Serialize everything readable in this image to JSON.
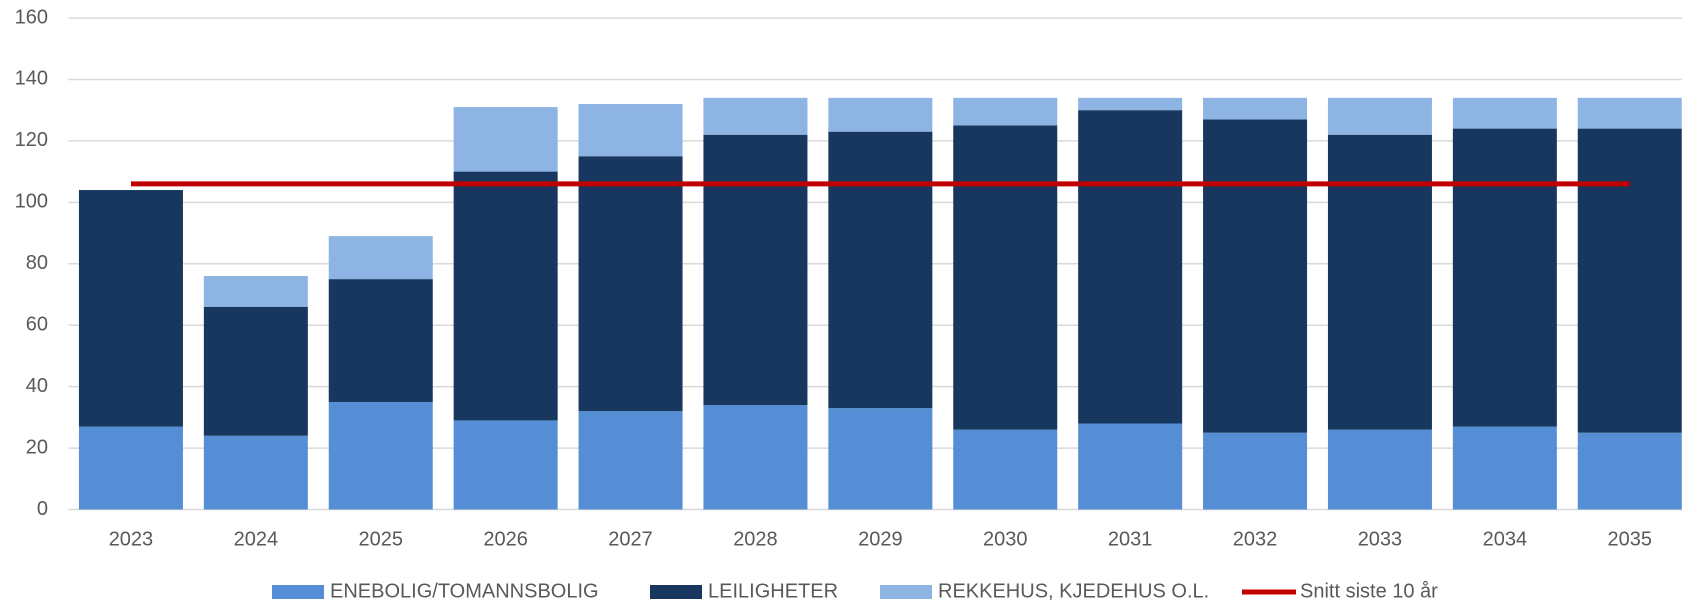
{
  "chart_data": {
    "type": "bar",
    "stacked": true,
    "categories": [
      "2023",
      "2024",
      "2025",
      "2026",
      "2027",
      "2028",
      "2029",
      "2030",
      "2031",
      "2032",
      "2033",
      "2034",
      "2035"
    ],
    "series": [
      {
        "name": "ENEBOLIG/TOMANNSBOLIG",
        "color": "#558ed5",
        "values": [
          27,
          24,
          35,
          29,
          32,
          34,
          33,
          26,
          28,
          25,
          26,
          27,
          25
        ]
      },
      {
        "name": "LEILIGHETER",
        "color": "#17375e",
        "values": [
          77,
          42,
          40,
          81,
          83,
          88,
          90,
          99,
          102,
          102,
          96,
          97,
          99
        ]
      },
      {
        "name": "REKKEHUS, KJEDEHUS O.L.",
        "color": "#8eb4e3",
        "values": [
          0,
          10,
          14,
          21,
          17,
          12,
          11,
          9,
          4,
          7,
          12,
          10,
          10
        ]
      },
      {
        "name": "Snitt siste 10 år",
        "color": "#c00000",
        "type": "line",
        "values": [
          106,
          106,
          106,
          106,
          106,
          106,
          106,
          106,
          106,
          106,
          106,
          106,
          106
        ]
      }
    ],
    "ylim": [
      0,
      160
    ],
    "yticks": [
      0,
      20,
      40,
      60,
      80,
      100,
      120,
      140,
      160
    ],
    "grid": true,
    "legend": "bottom"
  }
}
